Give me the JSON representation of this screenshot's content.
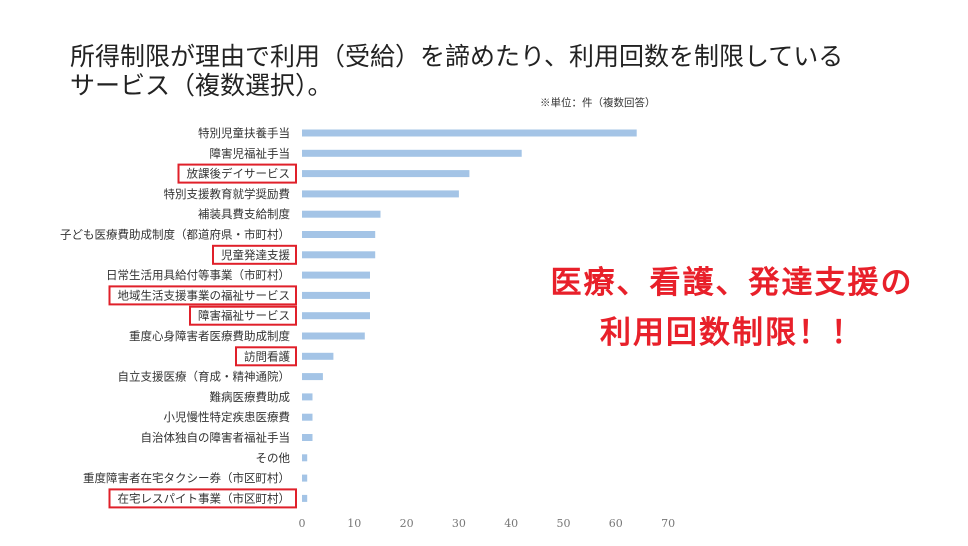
{
  "title": {
    "line1": "所得制限が理由で利用（受給）を諦めたり、利用回数を制限している",
    "line2": "サービス（複数選択）。"
  },
  "unit_note": "※単位：件（複数回答）",
  "callout": {
    "line1": "医療、看護、発達支援の",
    "line2": "利用回数制限！！"
  },
  "colors": {
    "bar": "#a4c4e6",
    "highlight": "#e0202a",
    "callout": "#e8202a"
  },
  "chart_data": {
    "type": "bar",
    "orientation": "horizontal",
    "categories": [
      "特別児童扶養手当",
      "障害児福祉手当",
      "放課後デイサービス",
      "特別支援教育就学奨励費",
      "補装具費支給制度",
      "子ども医療費助成制度（都道府県・市町村）",
      "児童発達支援",
      "日常生活用具給付等事業（市町村）",
      "地域生活支援事業の福祉サービス",
      "障害福祉サービス",
      "重度心身障害者医療費助成制度",
      "訪問看護",
      "自立支援医療（育成・精神通院）",
      "難病医療費助成",
      "小児慢性特定疾患医療費",
      "自治体独自の障害者福祉手当",
      "その他",
      "重度障害者在宅タクシー券（市区町村）",
      "在宅レスパイト事業（市区町村）"
    ],
    "values": [
      64,
      42,
      32,
      30,
      15,
      14,
      14,
      13,
      13,
      13,
      12,
      6,
      4,
      2,
      2,
      2,
      1,
      1,
      1
    ],
    "highlighted_categories": [
      "放課後デイサービス",
      "児童発達支援",
      "地域生活支援事業の福祉サービス",
      "障害福祉サービス",
      "訪問看護",
      "在宅レスパイト事業（市区町村）"
    ],
    "xlim": [
      0,
      70
    ],
    "xticks": [
      0,
      10,
      20,
      30,
      40,
      50,
      60,
      70
    ],
    "grid": false,
    "legend": "none"
  }
}
